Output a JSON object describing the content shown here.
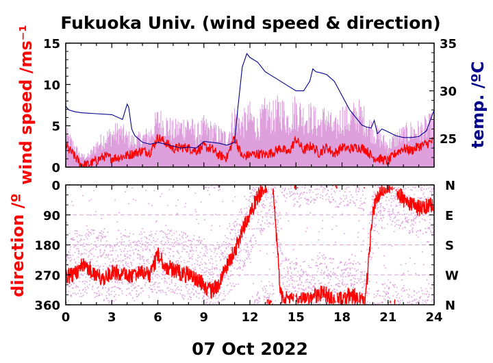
{
  "title": "Fukuoka Univ. (wind speed & direction)",
  "xlabel": "07 Oct 2022",
  "colors": {
    "wind_speed": "#ff0000",
    "gust": "#dda0dd",
    "temperature": "#00008b",
    "axis": "#000000"
  },
  "chart_data": [
    {
      "type": "line",
      "name": "top-panel",
      "ylabel_left": "wind speed /ms⁻¹",
      "ylabel_right": "temp. /ºC",
      "xlim": [
        0,
        24
      ],
      "ylim_left": [
        0,
        15
      ],
      "ylim_right": [
        22,
        35
      ],
      "xticks": [
        "0",
        "3",
        "6",
        "9",
        "12",
        "15",
        "18",
        "21",
        "24"
      ],
      "yticks_left": [
        "0",
        "5",
        "10",
        "15"
      ],
      "yticks_right": [
        "25",
        "30",
        "35"
      ],
      "series": [
        {
          "axis": "left",
          "x": [
            0,
            0.5,
            1,
            1.5,
            2,
            2.5,
            3,
            3.5,
            4,
            4.5,
            5,
            5.5,
            6,
            6.5,
            7,
            7.5,
            8,
            8.5,
            9,
            9.5,
            10,
            10.5,
            11,
            11.5,
            12,
            12.5,
            13,
            13.5,
            14,
            14.5,
            15,
            15.5,
            16,
            16.5,
            17,
            17.5,
            18,
            18.5,
            19,
            19.5,
            20,
            20.5,
            21,
            21.5,
            22,
            22.5,
            23,
            23.5,
            24
          ],
          "values": [
            2.6,
            1.5,
            0.3,
            0.3,
            0.8,
            1.3,
            1.1,
            1.2,
            1.4,
            1.7,
            2,
            1.8,
            3.6,
            3,
            2.2,
            2.4,
            2.3,
            2,
            2.5,
            2.2,
            1.4,
            1.2,
            3.6,
            1.2,
            1.5,
            1.6,
            1.5,
            1.8,
            2.3,
            1.7,
            3.4,
            2,
            2.6,
            1.7,
            2.4,
            1.6,
            2.4,
            2.2,
            2.4,
            2.2,
            1.2,
            1,
            0.7,
            1.7,
            2.3,
            2,
            2.5,
            2.8,
            3.2
          ]
        },
        {
          "axis": "left",
          "x": [
            0,
            0.5,
            1,
            1.5,
            2,
            2.5,
            3,
            3.5,
            4,
            4.5,
            5,
            5.5,
            6,
            6.5,
            7,
            7.5,
            8,
            8.5,
            9,
            9.5,
            10,
            10.5,
            11,
            11.5,
            12,
            12.5,
            13,
            13.5,
            14,
            14.5,
            15,
            15.5,
            16,
            16.5,
            17,
            17.5,
            18,
            18.5,
            19,
            19.5,
            20,
            20.5,
            21,
            21.5,
            22,
            22.5,
            23,
            23.5,
            24
          ],
          "values": [
            4.5,
            3,
            1.5,
            1.5,
            3,
            4,
            4.5,
            5,
            4,
            3.5,
            4,
            4.5,
            6.5,
            6,
            5,
            5.5,
            6,
            4.5,
            5.5,
            5,
            4.5,
            4,
            7,
            6,
            7,
            5.5,
            7.5,
            7,
            8,
            6.5,
            8,
            7,
            7,
            6,
            7,
            5,
            7,
            6.5,
            7.5,
            6.5,
            5,
            4,
            3,
            4,
            4.5,
            5,
            5,
            5.5,
            6
          ]
        },
        {
          "axis": "right",
          "x": [
            0,
            0.2,
            0.6,
            1,
            2,
            3,
            3.7,
            4,
            4.1,
            4.3,
            4.5,
            5,
            5.5,
            6,
            6.5,
            7,
            7.5,
            8,
            8.5,
            9,
            9.5,
            10,
            10.5,
            11,
            11.2,
            11.5,
            11.8,
            12,
            12.5,
            13,
            13.5,
            14,
            14.5,
            15,
            15.5,
            15.9,
            16.1,
            16.3,
            16.6,
            17,
            17.5,
            18,
            18.5,
            19,
            19.3,
            19.6,
            19.9,
            20.1,
            20.3,
            20.6,
            21,
            21.5,
            22,
            22.5,
            23,
            23.5,
            24
          ],
          "values": [
            28.4,
            28,
            27.8,
            27.7,
            27.6,
            27.5,
            27,
            28.6,
            28.3,
            26,
            25.3,
            24.6,
            24.4,
            24.6,
            24.4,
            24.2,
            24,
            24.1,
            24,
            24.7,
            24.6,
            24.5,
            24.3,
            24.6,
            28,
            32.5,
            33.9,
            33.5,
            33,
            32,
            31.5,
            31,
            30.5,
            30,
            30,
            31,
            32.3,
            32,
            31.9,
            31.7,
            31,
            29.5,
            28,
            27,
            26.4,
            26.2,
            26.1,
            26.9,
            25.5,
            26,
            25.7,
            25.3,
            25.1,
            25.1,
            25.2,
            25.8,
            28
          ]
        }
      ]
    },
    {
      "type": "scatter",
      "name": "bottom-panel",
      "ylabel": "direction /º",
      "xlim": [
        0,
        24
      ],
      "ylim": [
        0,
        360
      ],
      "yaxis_inverted": true,
      "xticks": [
        "0",
        "3",
        "6",
        "9",
        "12",
        "15",
        "18",
        "21",
        "24"
      ],
      "yticks_left": [
        "0",
        "90",
        "180",
        "270",
        "360"
      ],
      "yticks_right": [
        "N",
        "E",
        "S",
        "W",
        "N"
      ],
      "series": [
        {
          "x": [
            0,
            0.5,
            1,
            1.5,
            2,
            2.5,
            3,
            3.5,
            4,
            4.5,
            5,
            5.5,
            6,
            6.5,
            7,
            7.5,
            8,
            8.5,
            9,
            9.5,
            10,
            10.5,
            11,
            11.5,
            12,
            12.5,
            13,
            13.5,
            14,
            14.5,
            15,
            15.5,
            16,
            16.5,
            17,
            17.5,
            18,
            18.5,
            19,
            19.5,
            20,
            20.5,
            21,
            21.5,
            22,
            22.5,
            23,
            23.5,
            24
          ],
          "values": [
            270,
            275,
            240,
            250,
            270,
            285,
            260,
            265,
            275,
            270,
            265,
            270,
            210,
            245,
            255,
            265,
            270,
            280,
            300,
            320,
            295,
            240,
            200,
            140,
            90,
            35,
            5,
            5,
            330,
            345,
            350,
            345,
            345,
            325,
            330,
            350,
            345,
            330,
            340,
            355,
            80,
            20,
            5,
            10,
            45,
            60,
            70,
            65,
            60
          ]
        },
        {
          "x": [
            0,
            0.5,
            1,
            1.5,
            2,
            2.5,
            3,
            3.5,
            4,
            4.5,
            5,
            5.5,
            6,
            6.5,
            7,
            7.5,
            8,
            8.5,
            9,
            9.5,
            10,
            10.5,
            11,
            11.5,
            12,
            12.5,
            13,
            13.5,
            14,
            14.5,
            15,
            15.5,
            16,
            16.5,
            17,
            17.5,
            18,
            18.5,
            19,
            19.5,
            20,
            20.5,
            21,
            21.5,
            22,
            22.5,
            23,
            23.5,
            24
          ],
          "values": [
            255,
            230,
            250,
            220,
            245,
            230,
            280,
            220,
            240,
            250,
            230,
            240,
            225,
            235,
            230,
            240,
            250,
            250,
            270,
            300,
            280,
            230,
            210,
            160,
            120,
            60,
            30,
            20,
            300,
            320,
            330,
            330,
            320,
            300,
            310,
            330,
            330,
            320,
            330,
            340,
            70,
            40,
            20,
            30,
            40,
            50,
            60,
            50,
            50
          ]
        }
      ]
    }
  ]
}
